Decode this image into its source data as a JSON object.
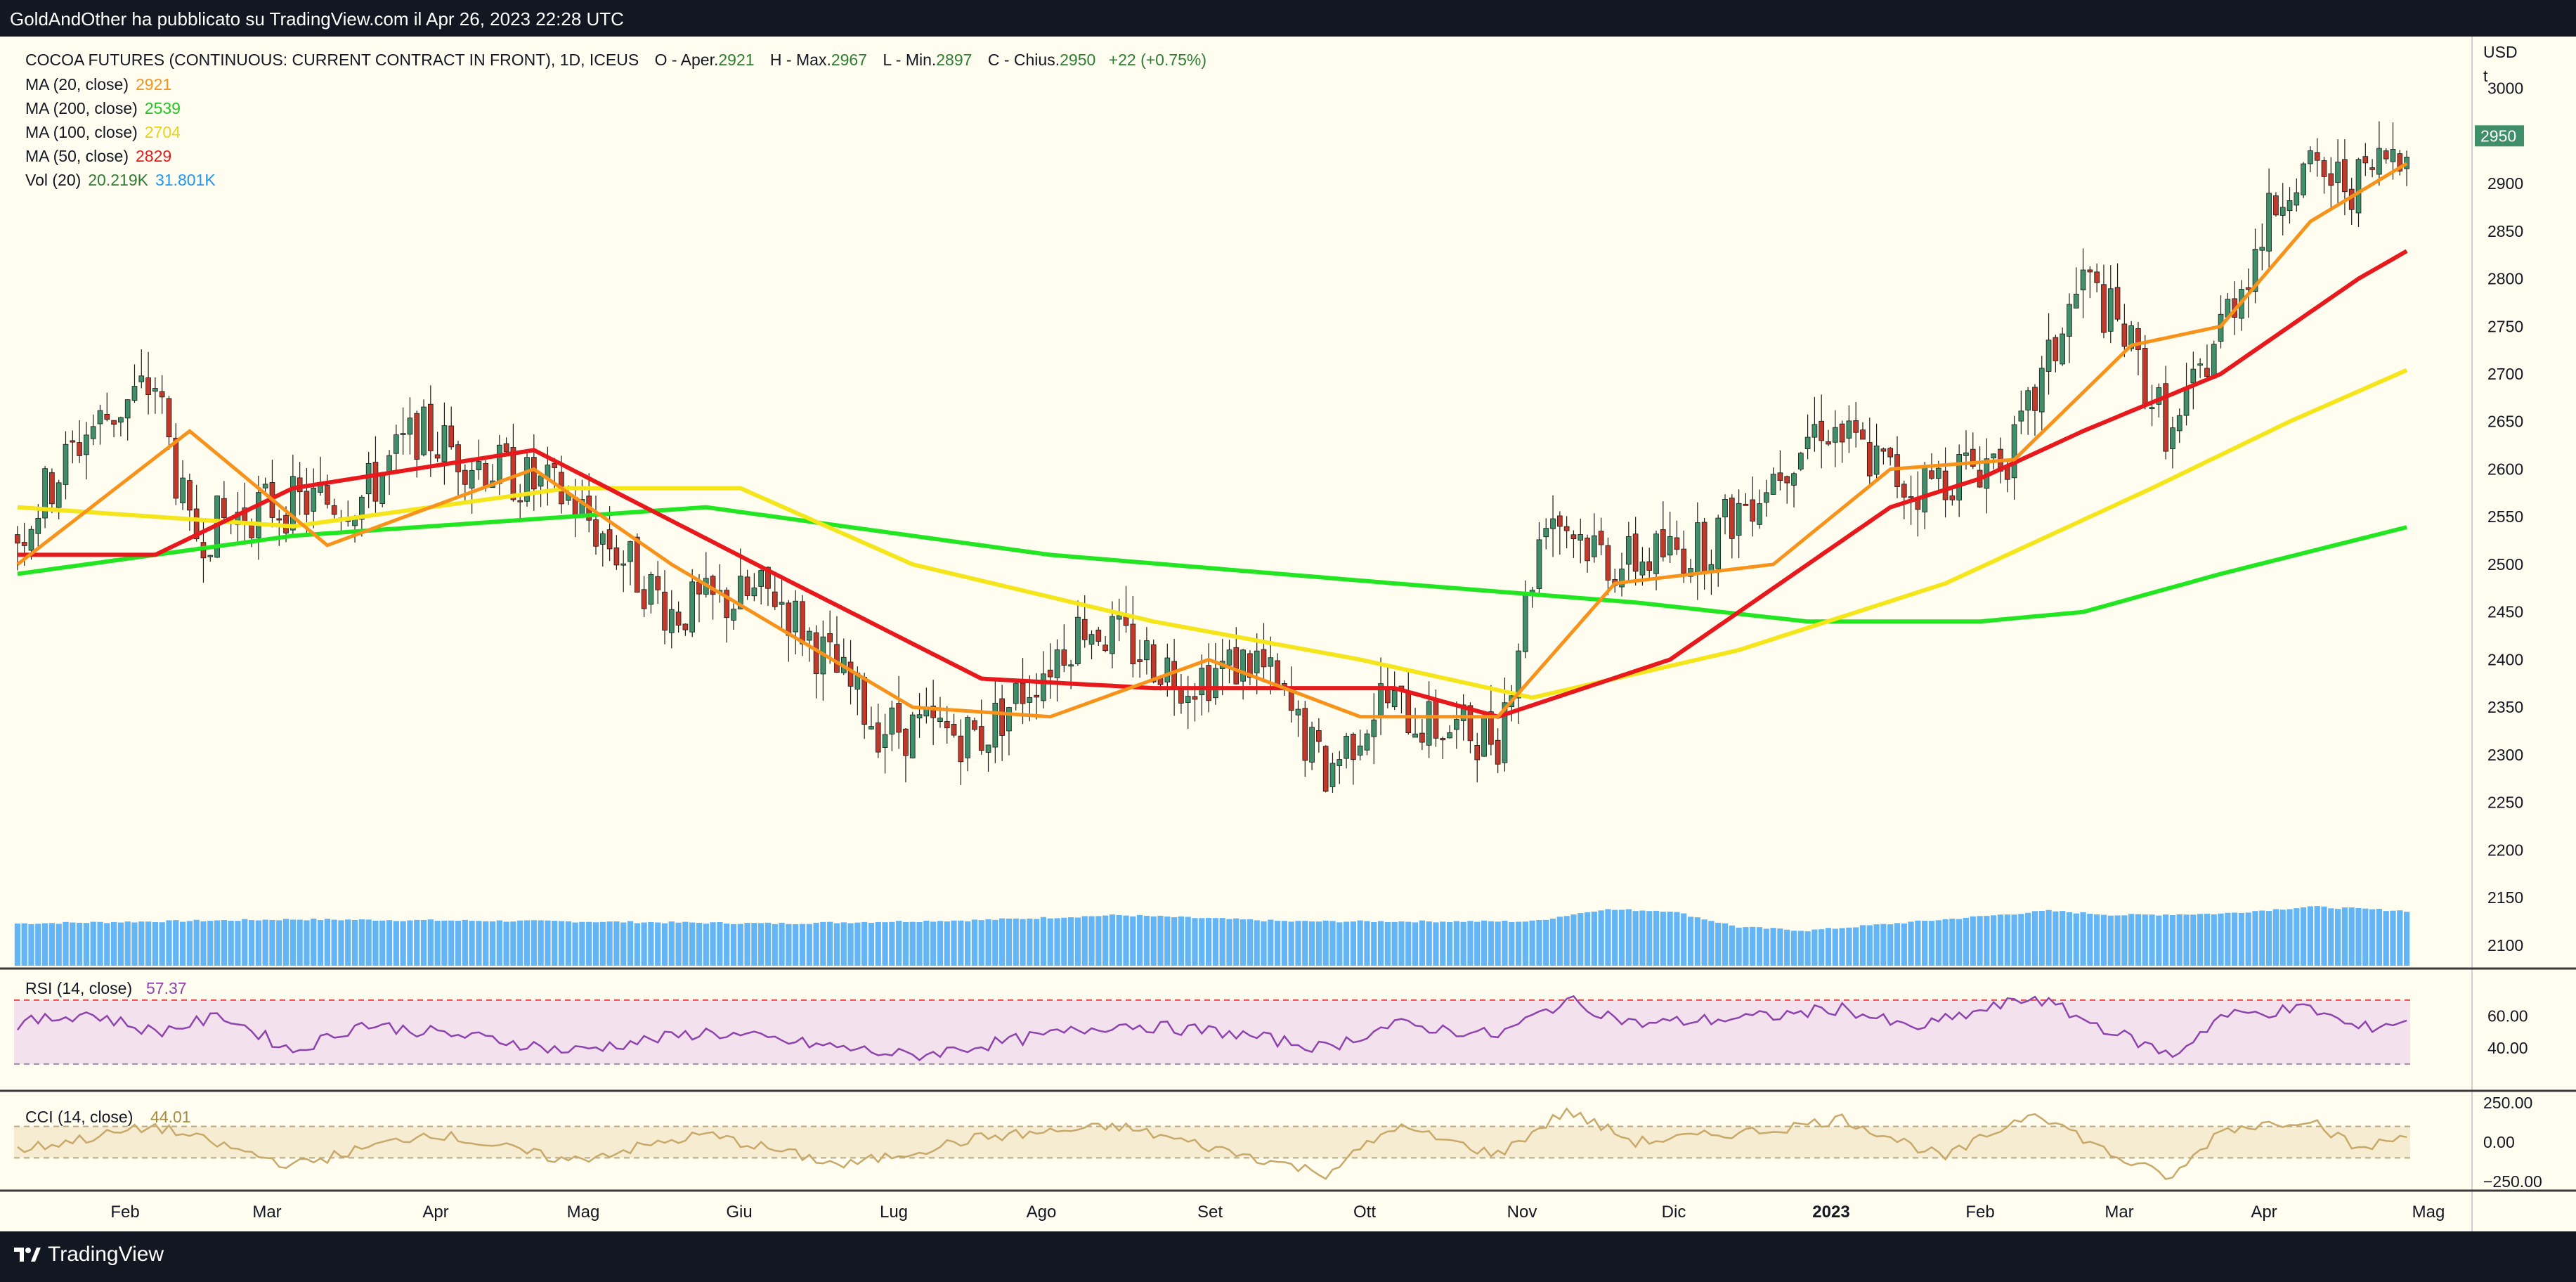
{
  "header": {
    "publisher": "GoldAndOther ha pubblicato su TradingView.com il Apr 26, 2023 22:28 UTC"
  },
  "footer": {
    "brand": "TradingView"
  },
  "legend": {
    "symbol": "COCOA FUTURES (CONTINUOUS: CURRENT CONTRACT IN FRONT), 1D, ICEUS",
    "ohlc": [
      {
        "k": "O",
        "label": "Aper.",
        "v": "2921"
      },
      {
        "k": "H",
        "label": "Max.",
        "v": "2967"
      },
      {
        "k": "L",
        "label": "Min.",
        "v": "2897"
      },
      {
        "k": "C",
        "label": "Chius.",
        "v": "2950"
      }
    ],
    "change": "+22 (+0.75%)",
    "indicators": [
      {
        "label": "MA (20, close)",
        "value": "2921",
        "color": "#f7931a"
      },
      {
        "label": "MA (200, close)",
        "value": "2539",
        "color": "#22e622"
      },
      {
        "label": "MA (100, close)",
        "value": "2704",
        "color": "#f5e51b"
      },
      {
        "label": "MA (50, close)",
        "value": "2829",
        "color": "#e8191c"
      }
    ],
    "volume": {
      "label": "Vol (20)",
      "v1": "20.219K",
      "v1color": "#2e7d32",
      "v2": "31.801K",
      "v2color": "#2196f3"
    }
  },
  "colors": {
    "up": "#3f8f6a",
    "down": "#c0392b",
    "volume": "#64b5f6",
    "rsi": "#8e44ad",
    "cci": "#c8a96a"
  },
  "chart_data": [
    {
      "type": "candlestick",
      "title": "",
      "currency_label": "USD",
      "unit_label": "t",
      "last_price_label": "2950",
      "x_labels": [
        "Feb",
        "Mar",
        "Apr",
        "Mag",
        "Giu",
        "Lug",
        "Ago",
        "Set",
        "Ott",
        "Nov",
        "Dic",
        "2023",
        "Feb",
        "Mar",
        "Apr",
        "Mag"
      ],
      "y_ticks": [
        2100,
        2150,
        2200,
        2250,
        2300,
        2350,
        2400,
        2450,
        2500,
        2550,
        2600,
        2650,
        2700,
        2750,
        2800,
        2850,
        2900,
        2950,
        3000
      ],
      "ylim": [
        2080,
        3010
      ],
      "price_anchors": [
        [
          0,
          2530
        ],
        [
          10,
          2640
        ],
        [
          20,
          2690
        ],
        [
          25,
          2530
        ],
        [
          35,
          2560
        ],
        [
          50,
          2570
        ],
        [
          58,
          2640
        ],
        [
          66,
          2610
        ],
        [
          80,
          2570
        ],
        [
          95,
          2450
        ],
        [
          110,
          2470
        ],
        [
          125,
          2330
        ],
        [
          140,
          2320
        ],
        [
          155,
          2440
        ],
        [
          170,
          2380
        ],
        [
          180,
          2400
        ],
        [
          190,
          2280
        ],
        [
          198,
          2360
        ],
        [
          205,
          2330
        ],
        [
          215,
          2320
        ],
        [
          222,
          2560
        ],
        [
          232,
          2500
        ],
        [
          245,
          2520
        ],
        [
          262,
          2650
        ],
        [
          275,
          2580
        ],
        [
          290,
          2620
        ],
        [
          300,
          2800
        ],
        [
          306,
          2740
        ],
        [
          313,
          2630
        ],
        [
          320,
          2750
        ],
        [
          330,
          2910
        ],
        [
          340,
          2900
        ],
        [
          347,
          2950
        ]
      ],
      "ma_anchors": {
        "ma20": [
          [
            0,
            2500
          ],
          [
            25,
            2640
          ],
          [
            45,
            2520
          ],
          [
            75,
            2600
          ],
          [
            95,
            2500
          ],
          [
            130,
            2350
          ],
          [
            150,
            2340
          ],
          [
            173,
            2400
          ],
          [
            195,
            2340
          ],
          [
            215,
            2340
          ],
          [
            232,
            2480
          ],
          [
            255,
            2500
          ],
          [
            272,
            2600
          ],
          [
            290,
            2610
          ],
          [
            307,
            2730
          ],
          [
            320,
            2750
          ],
          [
            333,
            2860
          ],
          [
            347,
            2921
          ]
        ],
        "ma50": [
          [
            0,
            2510
          ],
          [
            20,
            2510
          ],
          [
            40,
            2580
          ],
          [
            75,
            2620
          ],
          [
            110,
            2490
          ],
          [
            140,
            2380
          ],
          [
            165,
            2370
          ],
          [
            200,
            2370
          ],
          [
            215,
            2340
          ],
          [
            240,
            2400
          ],
          [
            260,
            2500
          ],
          [
            272,
            2560
          ],
          [
            285,
            2590
          ],
          [
            300,
            2640
          ],
          [
            320,
            2700
          ],
          [
            340,
            2800
          ],
          [
            347,
            2829
          ]
        ],
        "ma100": [
          [
            0,
            2560
          ],
          [
            40,
            2540
          ],
          [
            80,
            2580
          ],
          [
            105,
            2580
          ],
          [
            130,
            2500
          ],
          [
            165,
            2440
          ],
          [
            195,
            2400
          ],
          [
            220,
            2360
          ],
          [
            250,
            2410
          ],
          [
            280,
            2480
          ],
          [
            310,
            2580
          ],
          [
            330,
            2650
          ],
          [
            347,
            2704
          ]
        ],
        "ma200": [
          [
            0,
            2490
          ],
          [
            40,
            2530
          ],
          [
            100,
            2560
          ],
          [
            150,
            2510
          ],
          [
            200,
            2480
          ],
          [
            235,
            2460
          ],
          [
            260,
            2440
          ],
          [
            285,
            2440
          ],
          [
            300,
            2450
          ],
          [
            320,
            2490
          ],
          [
            347,
            2539
          ]
        ]
      },
      "volume_anchors": [
        [
          0,
          0.6
        ],
        [
          40,
          0.66
        ],
        [
          80,
          0.63
        ],
        [
          110,
          0.6
        ],
        [
          140,
          0.65
        ],
        [
          160,
          0.72
        ],
        [
          185,
          0.63
        ],
        [
          220,
          0.63
        ],
        [
          230,
          0.8
        ],
        [
          240,
          0.78
        ],
        [
          250,
          0.55
        ],
        [
          260,
          0.5
        ],
        [
          275,
          0.62
        ],
        [
          295,
          0.78
        ],
        [
          305,
          0.72
        ],
        [
          320,
          0.74
        ],
        [
          333,
          0.84
        ],
        [
          347,
          0.78
        ]
      ],
      "rsi": {
        "label": "RSI (14, close)",
        "value": "57.37",
        "ticks": [
          "60.00",
          "40.00"
        ],
        "levels": [
          70,
          30
        ],
        "anchors": [
          [
            0,
            55
          ],
          [
            10,
            62
          ],
          [
            20,
            50
          ],
          [
            30,
            60
          ],
          [
            40,
            38
          ],
          [
            50,
            55
          ],
          [
            70,
            45
          ],
          [
            80,
            38
          ],
          [
            100,
            50
          ],
          [
            120,
            40
          ],
          [
            130,
            35
          ],
          [
            145,
            45
          ],
          [
            160,
            55
          ],
          [
            175,
            50
          ],
          [
            190,
            40
          ],
          [
            200,
            55
          ],
          [
            215,
            48
          ],
          [
            225,
            70
          ],
          [
            235,
            55
          ],
          [
            255,
            60
          ],
          [
            265,
            65
          ],
          [
            275,
            52
          ],
          [
            293,
            72
          ],
          [
            300,
            58
          ],
          [
            313,
            35
          ],
          [
            320,
            60
          ],
          [
            333,
            65
          ],
          [
            340,
            52
          ],
          [
            347,
            57.37
          ]
        ]
      },
      "cci": {
        "label": "CCI (14, close)",
        "value": "44.01",
        "ticks": [
          "250.00",
          "0.00",
          "−250.00"
        ],
        "levels": [
          100,
          -100
        ],
        "anchors": [
          [
            0,
            -50
          ],
          [
            20,
            100
          ],
          [
            40,
            -150
          ],
          [
            60,
            60
          ],
          [
            80,
            -120
          ],
          [
            100,
            50
          ],
          [
            120,
            -150
          ],
          [
            140,
            30
          ],
          [
            160,
            100
          ],
          [
            175,
            -50
          ],
          [
            190,
            -200
          ],
          [
            200,
            100
          ],
          [
            215,
            -80
          ],
          [
            225,
            200
          ],
          [
            235,
            0
          ],
          [
            255,
            80
          ],
          [
            265,
            150
          ],
          [
            280,
            -100
          ],
          [
            293,
            200
          ],
          [
            305,
            -100
          ],
          [
            313,
            -230
          ],
          [
            320,
            80
          ],
          [
            333,
            150
          ],
          [
            340,
            -50
          ],
          [
            347,
            44.01
          ]
        ]
      }
    }
  ]
}
